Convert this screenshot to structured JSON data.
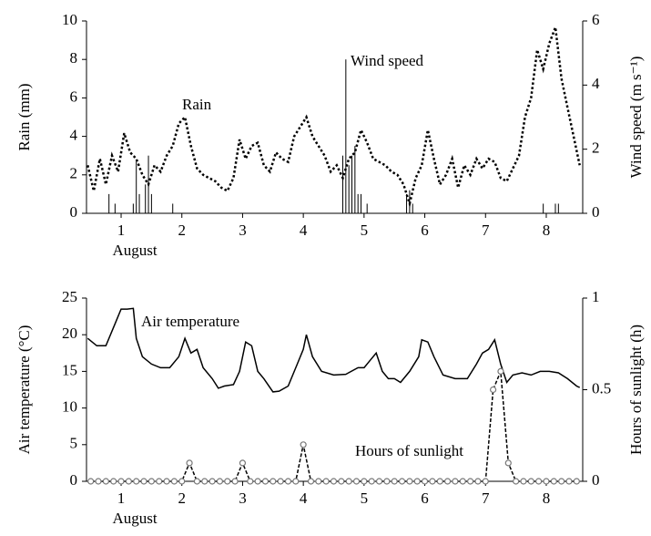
{
  "chart_data": [
    {
      "type": "combo",
      "x_label": "August",
      "y_label": "Rain (mm)",
      "y2_label": "Wind speed (m s⁻¹)",
      "xlim": [
        0.43,
        8.6
      ],
      "xticks": [
        1,
        2,
        3,
        4,
        5,
        6,
        7,
        8
      ],
      "ylim": [
        0,
        10
      ],
      "yticks": [
        0,
        2,
        4,
        6,
        8,
        10
      ],
      "y2lim": [
        0,
        6
      ],
      "y2ticks": [
        0,
        2,
        4,
        6
      ],
      "series": [
        {
          "name": "Rain",
          "type": "bar",
          "color": "#000000",
          "x": [
            0.8,
            0.9,
            1.2,
            1.25,
            1.3,
            1.4,
            1.45,
            1.5,
            1.85,
            4.65,
            4.7,
            4.75,
            4.8,
            4.85,
            4.9,
            4.95,
            5.05,
            5.7,
            5.75,
            5.8,
            7.95,
            8.15,
            8.2
          ],
          "values": [
            1,
            0.5,
            0.5,
            2.8,
            1,
            1.5,
            3,
            1,
            0.5,
            3,
            8,
            2.5,
            3,
            3.5,
            1,
            1,
            0.5,
            1,
            1.2,
            0.5,
            0.5,
            0.5,
            0.5
          ]
        },
        {
          "name": "Wind speed",
          "type": "line",
          "style": "dotted",
          "axis": "y2",
          "color": "#000000",
          "x": [
            0.45,
            0.55,
            0.65,
            0.75,
            0.85,
            0.95,
            1.05,
            1.15,
            1.25,
            1.35,
            1.45,
            1.55,
            1.65,
            1.75,
            1.85,
            1.95,
            2.05,
            2.15,
            2.25,
            2.35,
            2.45,
            2.55,
            2.65,
            2.75,
            2.85,
            2.95,
            3.05,
            3.15,
            3.25,
            3.35,
            3.45,
            3.55,
            3.65,
            3.75,
            3.85,
            3.95,
            4.05,
            4.15,
            4.25,
            4.35,
            4.45,
            4.55,
            4.65,
            4.75,
            4.85,
            4.95,
            5.05,
            5.15,
            5.25,
            5.35,
            5.45,
            5.55,
            5.65,
            5.75,
            5.85,
            5.95,
            6.05,
            6.15,
            6.25,
            6.35,
            6.45,
            6.55,
            6.65,
            6.75,
            6.85,
            6.95,
            7.05,
            7.15,
            7.25,
            7.35,
            7.45,
            7.55,
            7.65,
            7.75,
            7.85,
            7.95,
            8.05,
            8.15,
            8.25,
            8.35,
            8.45,
            8.55
          ],
          "values": [
            1.5,
            0.7,
            1.7,
            0.9,
            1.8,
            1.3,
            2.5,
            1.9,
            1.7,
            1.2,
            0.9,
            1.5,
            1.3,
            1.8,
            2.1,
            2.8,
            3.0,
            2.1,
            1.4,
            1.2,
            1.1,
            1.0,
            0.8,
            0.7,
            1.1,
            2.3,
            1.7,
            2.1,
            2.2,
            1.5,
            1.3,
            1.9,
            1.7,
            1.6,
            2.4,
            2.7,
            3.0,
            2.4,
            2.1,
            1.8,
            1.3,
            1.5,
            1.1,
            1.7,
            1.9,
            2.6,
            2.2,
            1.7,
            1.6,
            1.5,
            1.3,
            1.2,
            0.9,
            0.3,
            1.1,
            1.5,
            2.6,
            1.7,
            0.9,
            1.2,
            1.7,
            0.8,
            1.5,
            1.2,
            1.7,
            1.4,
            1.7,
            1.6,
            1.1,
            1.0,
            1.4,
            1.8,
            3.0,
            3.6,
            5.1,
            4.5,
            5.3,
            5.8,
            4.2,
            3.3,
            2.4,
            1.5
          ]
        }
      ]
    },
    {
      "type": "combo",
      "x_label": "August",
      "y_label": "Air temperature (°C)",
      "y2_label": "Hours of sunlight (h)",
      "xlim": [
        0.43,
        8.6
      ],
      "xticks": [
        1,
        2,
        3,
        4,
        5,
        6,
        7,
        8
      ],
      "ylim": [
        0,
        25
      ],
      "yticks": [
        0,
        5,
        10,
        15,
        20,
        25
      ],
      "y2lim": [
        0,
        1
      ],
      "y2ticks": [
        0,
        0.5,
        1
      ],
      "series": [
        {
          "name": "Air temperature",
          "type": "line",
          "style": "solid",
          "color": "#000000",
          "x": [
            0.45,
            0.6,
            0.75,
            0.9,
            1.0,
            1.1,
            1.2,
            1.25,
            1.35,
            1.5,
            1.65,
            1.8,
            1.95,
            2.05,
            2.15,
            2.25,
            2.35,
            2.5,
            2.6,
            2.7,
            2.85,
            2.95,
            3.05,
            3.15,
            3.25,
            3.35,
            3.5,
            3.6,
            3.75,
            3.9,
            4.0,
            4.05,
            4.15,
            4.3,
            4.5,
            4.7,
            4.9,
            5.0,
            5.1,
            5.2,
            5.3,
            5.4,
            5.5,
            5.6,
            5.75,
            5.9,
            5.95,
            6.05,
            6.15,
            6.3,
            6.5,
            6.7,
            6.85,
            6.95,
            7.05,
            7.15,
            7.25,
            7.35,
            7.45,
            7.6,
            7.75,
            7.9,
            8.05,
            8.2,
            8.35,
            8.5,
            8.55
          ],
          "values": [
            19.5,
            18.5,
            18.5,
            21.5,
            23.5,
            23.5,
            23.6,
            19.5,
            17,
            16,
            15.5,
            15.5,
            17,
            19.5,
            17.5,
            18,
            15.5,
            14,
            12.7,
            13,
            13.2,
            15,
            19,
            18.5,
            15,
            14,
            12.2,
            12.3,
            13,
            16,
            18,
            20,
            17,
            15,
            14.5,
            14.6,
            15.5,
            15.5,
            16.5,
            17.5,
            15,
            14,
            14,
            13.5,
            15,
            17,
            19.3,
            19,
            17,
            14.5,
            14,
            14,
            16,
            17.5,
            18,
            19.3,
            16,
            13.5,
            14.5,
            14.8,
            14.5,
            15,
            15,
            14.8,
            14,
            13,
            12.8
          ]
        },
        {
          "name": "Hours of sunlight",
          "type": "line",
          "style": "dashed",
          "markers": true,
          "axis": "y2",
          "color": "#000000",
          "x": [
            0.5,
            0.625,
            0.75,
            0.875,
            1,
            1.125,
            1.25,
            1.375,
            1.5,
            1.625,
            1.75,
            1.875,
            2,
            2.125,
            2.25,
            2.375,
            2.5,
            2.625,
            2.75,
            2.875,
            3,
            3.125,
            3.25,
            3.375,
            3.5,
            3.625,
            3.75,
            3.875,
            4,
            4.125,
            4.25,
            4.375,
            4.5,
            4.625,
            4.75,
            4.875,
            5,
            5.125,
            5.25,
            5.375,
            5.5,
            5.625,
            5.75,
            5.875,
            6,
            6.125,
            6.25,
            6.375,
            6.5,
            6.625,
            6.75,
            6.875,
            7,
            7.125,
            7.25,
            7.375,
            7.5,
            7.625,
            7.75,
            7.875,
            8,
            8.125,
            8.25,
            8.375,
            8.5
          ],
          "values": [
            0,
            0,
            0,
            0,
            0,
            0,
            0,
            0,
            0,
            0,
            0,
            0,
            0,
            0.1,
            0,
            0,
            0,
            0,
            0,
            0,
            0.1,
            0,
            0,
            0,
            0,
            0,
            0,
            0,
            0.2,
            0,
            0,
            0,
            0,
            0,
            0,
            0,
            0,
            0,
            0,
            0,
            0,
            0,
            0,
            0,
            0,
            0,
            0,
            0,
            0,
            0,
            0,
            0,
            0,
            0.5,
            0.6,
            0.1,
            0,
            0,
            0,
            0,
            0,
            0,
            0,
            0,
            0
          ]
        }
      ]
    }
  ]
}
